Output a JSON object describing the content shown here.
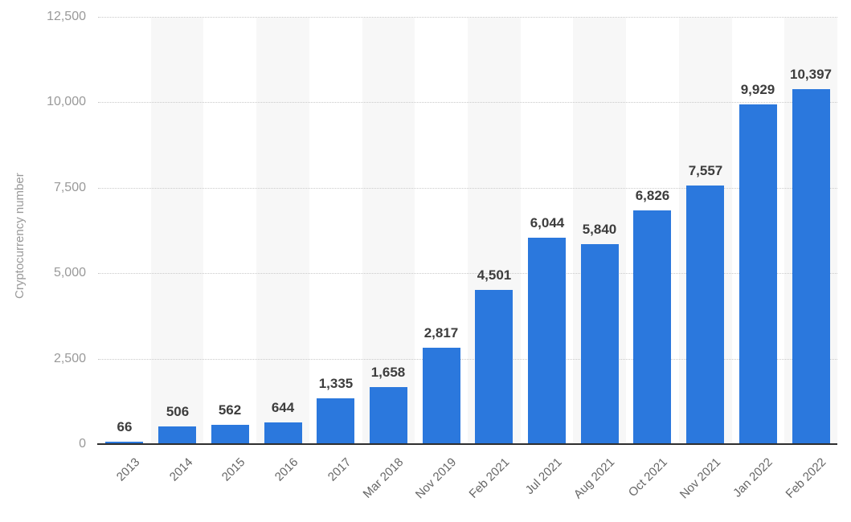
{
  "chart_data": {
    "type": "bar",
    "title": "",
    "xlabel": "",
    "ylabel": "Cryptocurrency number",
    "categories": [
      "2013",
      "2014",
      "2015",
      "2016",
      "2017",
      "Mar 2018",
      "Nov 2019",
      "Feb 2021",
      "Jul 2021",
      "Aug 2021",
      "Oct 2021",
      "Nov 2021",
      "Jan 2022",
      "Feb 2022"
    ],
    "values": [
      66,
      506,
      562,
      644,
      1335,
      1658,
      2817,
      4501,
      6044,
      5840,
      6826,
      7557,
      9929,
      10397
    ],
    "value_labels": [
      "66",
      "506",
      "562",
      "644",
      "1,335",
      "1,658",
      "2,817",
      "4,501",
      "6,044",
      "5,840",
      "6,826",
      "7,557",
      "9,929",
      "10,397"
    ],
    "ylim": [
      0,
      12500
    ],
    "yticks": [
      0,
      2500,
      5000,
      7500,
      10000,
      12500
    ],
    "ytick_labels": [
      "0",
      "2,500",
      "5,000",
      "7,500",
      "10,000",
      "12,500"
    ],
    "grid": "horizontal-dotted",
    "legend": "none",
    "bar_color": "#2b78dd",
    "stripe_color": "#f7f7f7"
  }
}
